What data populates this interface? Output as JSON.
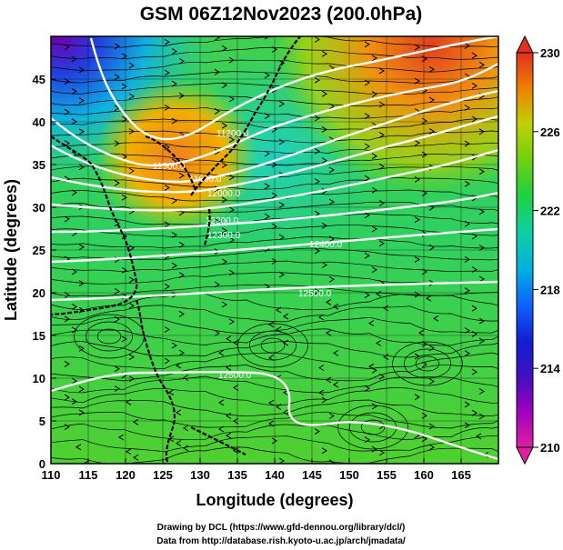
{
  "title": "GSM 06Z12Nov2023 (200.0hPa)",
  "xlabel": "Longitude (degrees)",
  "ylabel": "Latitude (degrees)",
  "xticks": [
    "110",
    "115",
    "120",
    "125",
    "130",
    "135",
    "140",
    "145",
    "150",
    "155",
    "160",
    "165"
  ],
  "yticks": [
    "0",
    "5",
    "10",
    "15",
    "20",
    "25",
    "30",
    "35",
    "40",
    "45"
  ],
  "colorbar": {
    "ticks": [
      "210",
      "214",
      "218",
      "222",
      "226",
      "230"
    ],
    "range": [
      210,
      230
    ],
    "colors": [
      "#e020a0",
      "#6000b0",
      "#1010c0",
      "#1060ff",
      "#00b0e0",
      "#10d0a0",
      "#20d040",
      "#60d010",
      "#a0d000",
      "#f0c000",
      "#f08000",
      "#e03020"
    ]
  },
  "contour_labels": [
    "11200.0",
    "11500.0",
    "11600.0",
    "12000.0",
    "12200.0",
    "12300.0",
    "12400.0",
    "12500.0",
    "12500.0"
  ],
  "credits": {
    "line1": "Drawing by DCL (https://www.gfd-dennou.org/library/dcl/)",
    "line2": "Data from http://database.rish.kyoto-u.ac.jp/arch/jmadata/"
  },
  "map": {
    "lon_range": [
      110,
      170
    ],
    "lat_range": [
      0,
      50
    ],
    "field": "temperature (K)",
    "overlay": [
      "geopotential height contours",
      "wind streamlines",
      "coastlines"
    ]
  }
}
